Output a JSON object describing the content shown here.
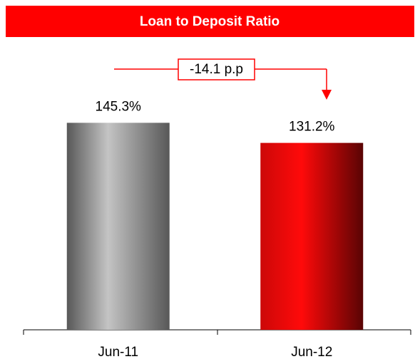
{
  "chart_data": {
    "type": "bar",
    "title": "Loan to Deposit Ratio",
    "categories": [
      "Jun-11",
      "Jun-12"
    ],
    "values": [
      145.3,
      131.2
    ],
    "value_labels": [
      "145.3%",
      "131.2%"
    ],
    "colors": [
      "#c4c4c4",
      "#ff0a0a"
    ],
    "annotation": "-14.1 p.p",
    "ylim": [
      0,
      160
    ]
  }
}
